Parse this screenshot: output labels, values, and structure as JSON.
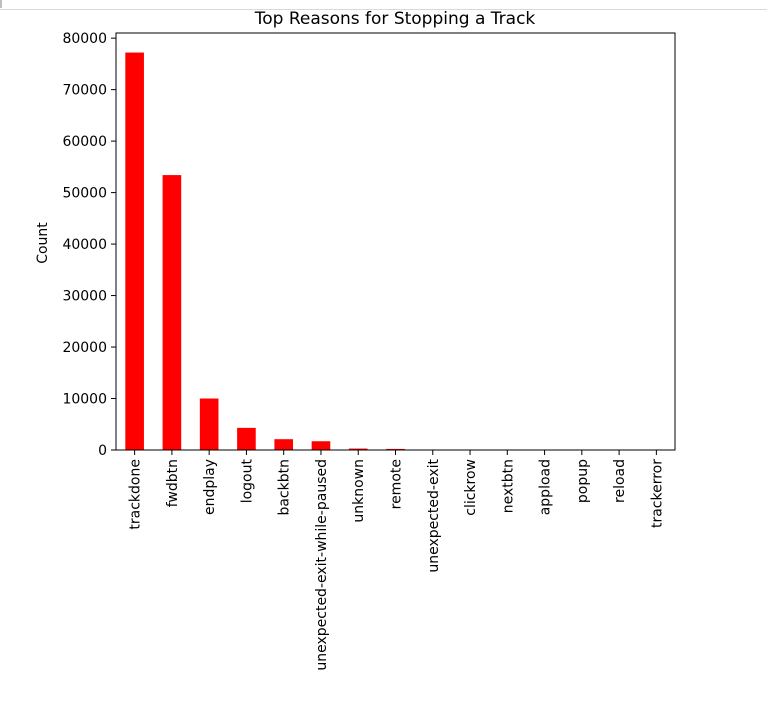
{
  "chart_data": {
    "type": "bar",
    "title": "Top Reasons for Stopping a Track",
    "xlabel": "",
    "ylabel": "Count",
    "ylim": [
      0,
      81000
    ],
    "yticks": [
      0,
      10000,
      20000,
      30000,
      40000,
      50000,
      60000,
      70000,
      80000
    ],
    "grid": false,
    "bar_color": "#ff0000",
    "categories": [
      "trackdone",
      "fwdbtn",
      "endplay",
      "logout",
      "backbtn",
      "unexpected-exit-while-paused",
      "unknown",
      "remote",
      "unexpected-exit",
      "clickrow",
      "nextbtn",
      "appload",
      "popup",
      "reload",
      "trackerror"
    ],
    "values": [
      77200,
      53400,
      10000,
      4300,
      2100,
      1700,
      280,
      210,
      45,
      30,
      20,
      15,
      10,
      8,
      5
    ]
  }
}
